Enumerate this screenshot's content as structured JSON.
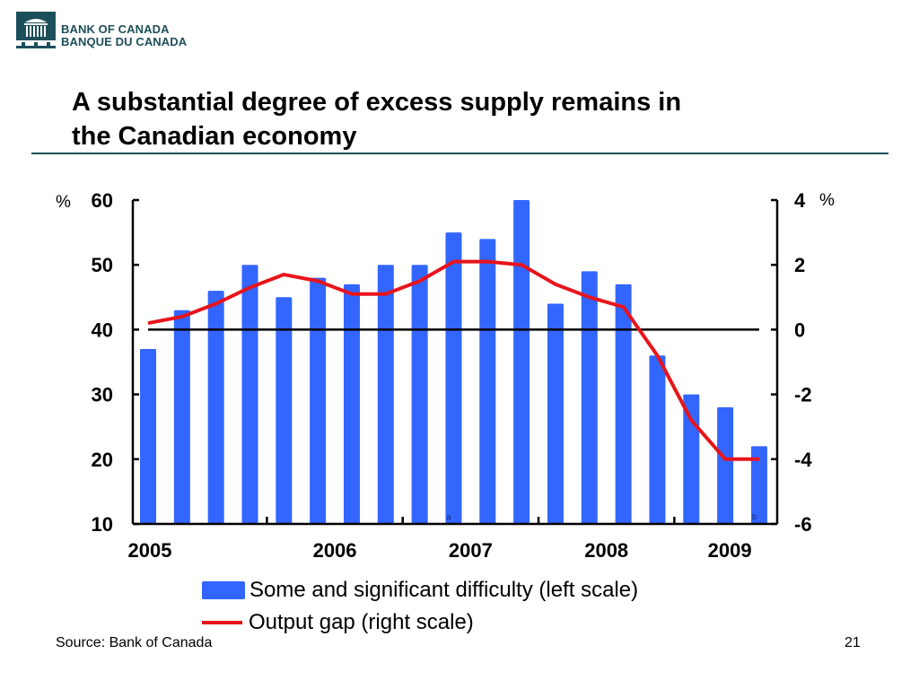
{
  "header": {
    "logo_line1": "BANK OF CANADA",
    "logo_line2": "BANQUE DU CANADA",
    "title_line1": "A substantial degree of excess supply remains in",
    "title_line2": "the Canadian economy"
  },
  "footer": {
    "source": "Source: Bank of Canada",
    "page_number": "21"
  },
  "colors": {
    "bars": "#3366ff",
    "line": "#e8141b",
    "brand": "#1d4f5a"
  },
  "chart_data": {
    "type": "bar",
    "title": "A substantial degree of excess supply remains in the Canadian economy",
    "xlabel": "",
    "left_axis": {
      "unit_label": "%",
      "ylim": [
        10,
        60
      ],
      "ticks": [
        "60",
        "50",
        "40",
        "30",
        "20",
        "10"
      ]
    },
    "right_axis": {
      "unit_label": "%",
      "ylim": [
        -6,
        4
      ],
      "ticks": [
        "4",
        "2",
        "0",
        "-2",
        "-4",
        "-6"
      ]
    },
    "x_tick_labels": [
      "2005",
      "2006",
      "2007",
      "2008",
      "2009"
    ],
    "x": [
      "2005Q1",
      "2005Q2",
      "2005Q3",
      "2005Q4",
      "2006Q1",
      "2006Q2",
      "2006Q3",
      "2006Q4",
      "2007Q1",
      "2007Q2",
      "2007Q3",
      "2007Q4",
      "2008Q1",
      "2008Q2",
      "2008Q3",
      "2008Q4",
      "2009Q1",
      "2009Q2",
      "2009Q3"
    ],
    "series": [
      {
        "name": "Some and significant difficulty (left scale)",
        "type": "bar",
        "axis": "left",
        "values": [
          37,
          43,
          46,
          50,
          45,
          48,
          47,
          50,
          50,
          55,
          54,
          60,
          44,
          49,
          47,
          36,
          30,
          28,
          22
        ]
      },
      {
        "name": "Output gap (right scale)",
        "type": "line",
        "axis": "right",
        "values": [
          0.2,
          0.4,
          0.8,
          1.3,
          1.7,
          1.5,
          1.1,
          1.1,
          1.5,
          2.1,
          2.1,
          2.0,
          1.4,
          1.0,
          0.7,
          -0.8,
          -2.8,
          -4.0,
          -4.0
        ]
      }
    ],
    "annotations": [
      {
        "text": "a",
        "at": "2007Q2"
      },
      {
        "text": "b",
        "at": "2009Q3"
      }
    ],
    "reference_line": {
      "axis": "right",
      "value": 0
    },
    "legend": [
      "Some and significant difficulty (left scale)",
      "Output gap (right scale)"
    ],
    "legend_position": "bottom",
    "grid": false
  }
}
